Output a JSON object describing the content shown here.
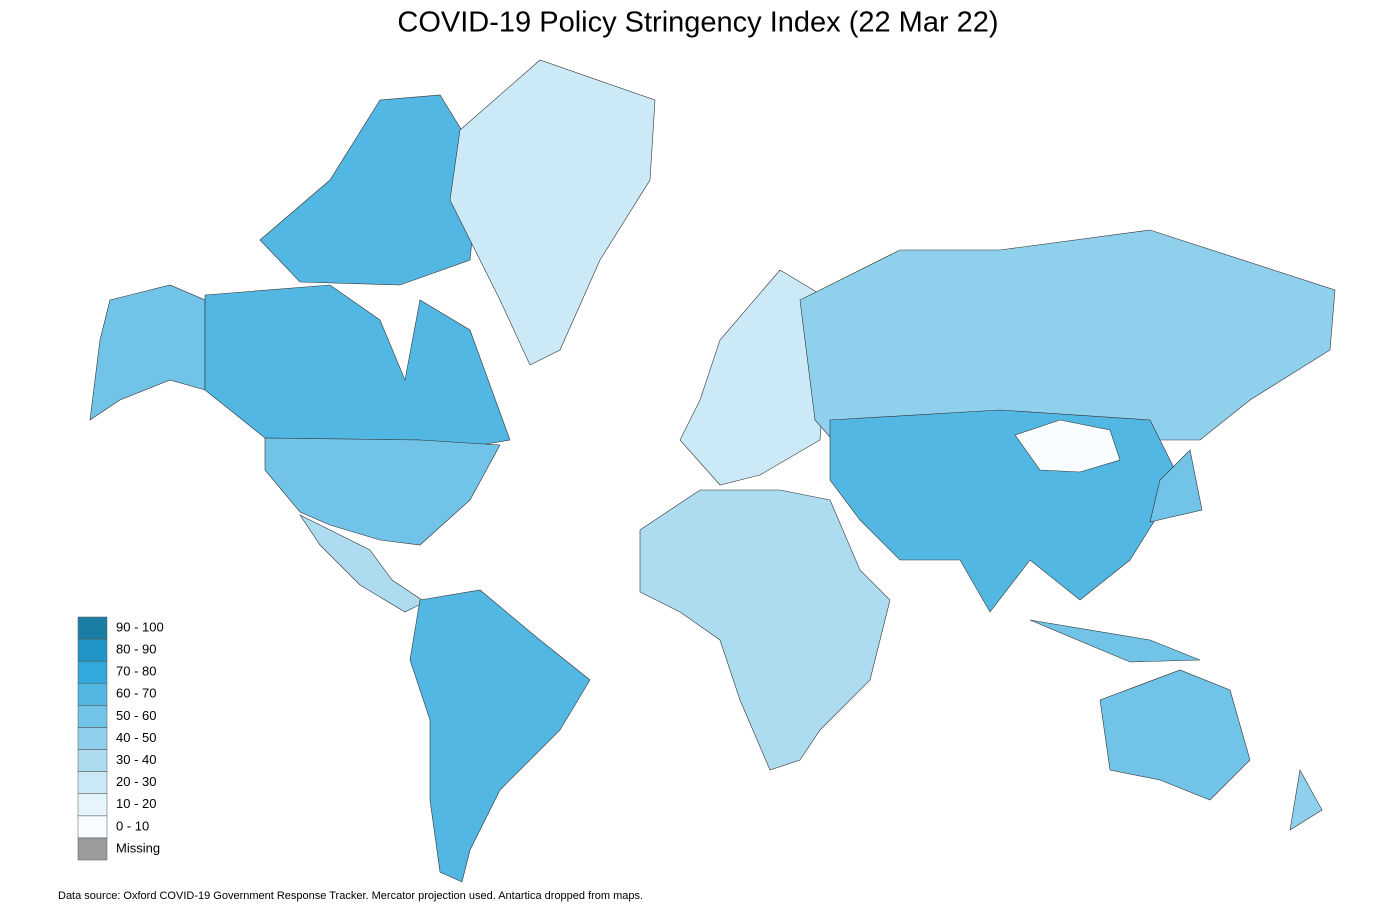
{
  "title": "COVID-19 Policy Stringency Index (22 Mar 22)",
  "legend": {
    "items": [
      {
        "label": "90 - 100",
        "color": "#1b7ea4"
      },
      {
        "label": "80 - 90",
        "color": "#2196c6"
      },
      {
        "label": "70 - 80",
        "color": "#31a9dc"
      },
      {
        "label": "60 - 70",
        "color": "#52b7e2"
      },
      {
        "label": "50 - 60",
        "color": "#71c3e7"
      },
      {
        "label": "40 - 50",
        "color": "#8fd0ec"
      },
      {
        "label": "30 - 40",
        "color": "#addcf1"
      },
      {
        "label": "20 - 30",
        "color": "#cbe9f6"
      },
      {
        "label": "10 - 20",
        "color": "#e6f5fb"
      },
      {
        "label": "0 - 10",
        "color": "#f9fdff"
      },
      {
        "label": "Missing",
        "color": "#9b9b9b"
      }
    ]
  },
  "source": "Data source: Oxford COVID-19 Government Response Tracker. Mercator projection used. Antartica dropped from maps."
}
